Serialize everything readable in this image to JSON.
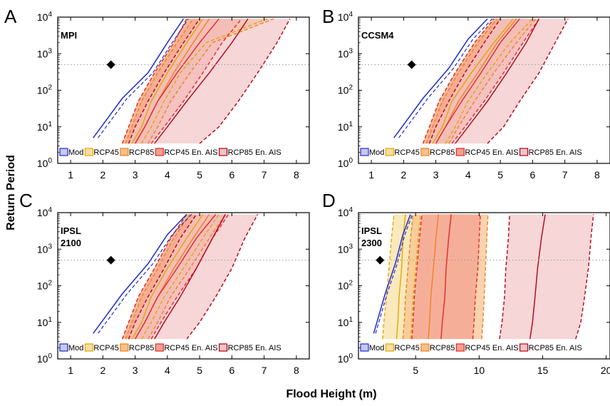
{
  "colors": {
    "mod": "#1f2bcc",
    "mod_fill": "#c6c9f3",
    "rcp45": "#e8a400",
    "rcp45_fill": "#f6dfa0",
    "rcp85": "#f08020",
    "rcp85_fill": "#f6c08a",
    "rcp45ais": "#e8262a",
    "rcp45ais_fill": "#f3a090",
    "rcp85ais": "#b30012",
    "rcp85ais_fill": "#f2c4c6",
    "marker": "#000000",
    "reference_line": "#999999"
  },
  "axis_labels": {
    "x": "Flood Height (m)",
    "y": "Return Period"
  },
  "y_ticks": [
    "0",
    "1",
    "2",
    "3",
    "4"
  ],
  "y_tick_base": "10",
  "legend": [
    "Mod",
    "RCP45",
    "RCP85",
    "RCP45 En. AIS",
    "RCP85 En. AIS"
  ],
  "chart_data": [
    {
      "type": "line",
      "panel": "A",
      "model": [
        "MPI"
      ],
      "y_scale": "log",
      "xlim": [
        0.6,
        8.4
      ],
      "ylim": [
        1,
        10000
      ],
      "x_ticks": [
        "1",
        "2",
        "3",
        "4",
        "5",
        "6",
        "7",
        "8"
      ],
      "reference_line_y": 500,
      "observed_marker": {
        "x": 2.25,
        "y": 500
      },
      "series": [
        {
          "name": "Mod",
          "style": "line",
          "x": [
            1.7,
            2.1,
            2.6,
            3.4,
            4.0,
            4.5
          ],
          "y": [
            5,
            15,
            60,
            300,
            2000,
            9000
          ]
        },
        {
          "name": "RCP45",
          "style": "band",
          "lower_x": [
            2.6,
            2.8,
            3.1,
            3.6,
            4.2,
            4.6
          ],
          "median_x": [
            2.9,
            3.2,
            3.5,
            4.0,
            4.6,
            5.1
          ],
          "upper_x": [
            3.2,
            3.5,
            3.9,
            4.4,
            5.2,
            7.1
          ],
          "y": [
            3.5,
            10,
            50,
            300,
            2000,
            9000
          ]
        },
        {
          "name": "RCP85",
          "style": "band",
          "lower_x": [
            2.7,
            2.9,
            3.2,
            3.7,
            4.3,
            4.8
          ],
          "median_x": [
            3.0,
            3.3,
            3.7,
            4.2,
            4.8,
            5.3
          ],
          "upper_x": [
            3.4,
            3.7,
            4.1,
            4.7,
            5.4,
            7.3
          ],
          "y": [
            3.5,
            10,
            50,
            300,
            2000,
            9000
          ]
        },
        {
          "name": "RCP45 En. AIS",
          "style": "band",
          "lower_x": [
            2.6,
            2.8,
            3.1,
            3.6,
            4.2,
            4.6
          ],
          "median_x": [
            3.0,
            3.3,
            3.7,
            4.3,
            5.0,
            5.6
          ],
          "upper_x": [
            3.5,
            3.9,
            4.5,
            5.1,
            5.7,
            6.3
          ],
          "y": [
            3.5,
            10,
            50,
            300,
            2000,
            9000
          ]
        },
        {
          "name": "RCP85 En. AIS",
          "style": "band",
          "lower_x": [
            2.8,
            3.0,
            3.4,
            3.9,
            4.5,
            5.0
          ],
          "median_x": [
            3.6,
            4.0,
            4.6,
            5.3,
            6.0,
            6.5
          ],
          "upper_x": [
            5.0,
            5.6,
            6.2,
            6.8,
            7.4,
            7.8
          ],
          "y": [
            3.5,
            10,
            50,
            300,
            2000,
            9000
          ]
        }
      ]
    },
    {
      "type": "line",
      "panel": "B",
      "model": [
        "CCSM4"
      ],
      "y_scale": "log",
      "xlim": [
        0.6,
        8.4
      ],
      "ylim": [
        1,
        10000
      ],
      "x_ticks": [
        "1",
        "2",
        "3",
        "4",
        "5",
        "6",
        "7",
        "8"
      ],
      "reference_line_y": 500,
      "observed_marker": {
        "x": 2.25,
        "y": 500
      },
      "series": [
        {
          "name": "Mod",
          "style": "line",
          "x": [
            1.7,
            2.1,
            2.6,
            3.4,
            4.0,
            4.6
          ],
          "y": [
            5,
            15,
            60,
            400,
            2500,
            9000
          ]
        },
        {
          "name": "RCP45",
          "style": "band",
          "lower_x": [
            2.6,
            2.8,
            3.1,
            3.6,
            4.2,
            4.8
          ],
          "median_x": [
            2.9,
            3.2,
            3.5,
            4.1,
            4.8,
            5.4
          ],
          "upper_x": [
            3.3,
            3.6,
            4.0,
            4.6,
            5.3,
            6.0
          ],
          "y": [
            3.5,
            10,
            50,
            300,
            2000,
            9000
          ]
        },
        {
          "name": "RCP85",
          "style": "band",
          "lower_x": [
            2.7,
            2.9,
            3.2,
            3.7,
            4.3,
            4.9
          ],
          "median_x": [
            3.0,
            3.3,
            3.7,
            4.3,
            4.9,
            5.5
          ],
          "upper_x": [
            3.4,
            3.7,
            4.2,
            4.8,
            5.5,
            6.1
          ],
          "y": [
            3.5,
            10,
            50,
            300,
            2000,
            9000
          ]
        },
        {
          "name": "RCP45 En. AIS",
          "style": "band",
          "lower_x": [
            2.6,
            2.8,
            3.1,
            3.6,
            4.2,
            4.8
          ],
          "median_x": [
            3.0,
            3.3,
            3.8,
            4.4,
            5.0,
            5.6
          ],
          "upper_x": [
            3.5,
            3.9,
            4.5,
            5.1,
            5.7,
            6.2
          ],
          "y": [
            3.5,
            10,
            50,
            300,
            2000,
            9000
          ]
        },
        {
          "name": "RCP85 En. AIS",
          "style": "band",
          "lower_x": [
            2.8,
            3.0,
            3.4,
            3.9,
            4.5,
            5.0
          ],
          "median_x": [
            3.6,
            4.0,
            4.6,
            5.2,
            5.8,
            6.2
          ],
          "upper_x": [
            4.6,
            5.1,
            5.6,
            6.2,
            6.7,
            7.1
          ],
          "y": [
            3.5,
            10,
            50,
            300,
            2000,
            9000
          ]
        }
      ]
    },
    {
      "type": "line",
      "panel": "C",
      "model": [
        "IPSL",
        "2100"
      ],
      "y_scale": "log",
      "xlim": [
        0.6,
        8.4
      ],
      "ylim": [
        1,
        10000
      ],
      "x_ticks": [
        "1",
        "2",
        "3",
        "4",
        "5",
        "6",
        "7",
        "8"
      ],
      "reference_line_y": 500,
      "observed_marker": {
        "x": 2.25,
        "y": 500
      },
      "series": [
        {
          "name": "Mod",
          "style": "line",
          "x": [
            1.7,
            2.1,
            2.6,
            3.4,
            4.0,
            4.6
          ],
          "y": [
            5,
            15,
            60,
            400,
            2500,
            9000
          ]
        },
        {
          "name": "RCP45",
          "style": "band",
          "lower_x": [
            2.6,
            2.8,
            3.1,
            3.6,
            4.1,
            4.6
          ],
          "median_x": [
            2.9,
            3.2,
            3.5,
            4.0,
            4.6,
            5.1
          ],
          "upper_x": [
            3.2,
            3.5,
            3.9,
            4.5,
            5.1,
            5.6
          ],
          "y": [
            3.5,
            10,
            50,
            300,
            2000,
            9000
          ]
        },
        {
          "name": "RCP85",
          "style": "band",
          "lower_x": [
            2.7,
            2.9,
            3.2,
            3.7,
            4.2,
            4.7
          ],
          "median_x": [
            3.0,
            3.3,
            3.7,
            4.2,
            4.8,
            5.3
          ],
          "upper_x": [
            3.4,
            3.7,
            4.1,
            4.7,
            5.3,
            5.8
          ],
          "y": [
            3.5,
            10,
            50,
            300,
            2000,
            9000
          ]
        },
        {
          "name": "RCP45 En. AIS",
          "style": "band",
          "lower_x": [
            2.6,
            2.8,
            3.1,
            3.6,
            4.1,
            4.6
          ],
          "median_x": [
            3.0,
            3.3,
            3.7,
            4.3,
            4.9,
            5.5
          ],
          "upper_x": [
            3.5,
            3.8,
            4.3,
            4.9,
            5.4,
            5.9
          ],
          "y": [
            3.5,
            10,
            50,
            300,
            2000,
            9000
          ]
        },
        {
          "name": "RCP85 En. AIS",
          "style": "band",
          "lower_x": [
            2.8,
            3.0,
            3.4,
            3.9,
            4.4,
            4.9
          ],
          "median_x": [
            3.6,
            3.9,
            4.4,
            4.9,
            5.4,
            5.8
          ],
          "upper_x": [
            4.6,
            5.0,
            5.5,
            6.0,
            6.4,
            6.8
          ],
          "y": [
            3.5,
            10,
            50,
            300,
            2000,
            9000
          ]
        }
      ]
    },
    {
      "type": "line",
      "panel": "D",
      "model": [
        "IPSL",
        "2300"
      ],
      "y_scale": "log",
      "xlim": [
        0.5,
        20.3
      ],
      "ylim": [
        1,
        10000
      ],
      "x_ticks": [
        "5",
        "10",
        "15",
        "20"
      ],
      "reference_line_y": 500,
      "observed_marker": {
        "x": 2.2,
        "y": 500
      },
      "series": [
        {
          "name": "Mod",
          "style": "line",
          "x": [
            1.7,
            2.1,
            2.6,
            3.4,
            4.0,
            4.6
          ],
          "y": [
            5,
            15,
            60,
            400,
            2500,
            9000
          ]
        },
        {
          "name": "RCP45",
          "style": "band",
          "lower_x": [
            2.4,
            2.5,
            2.7,
            2.9,
            3.1,
            3.3
          ],
          "median_x": [
            3.5,
            3.6,
            3.7,
            3.9,
            4.0,
            4.2
          ],
          "upper_x": [
            4.6,
            4.7,
            4.8,
            5.0,
            5.2,
            5.4
          ],
          "y": [
            3.5,
            10,
            50,
            300,
            2000,
            9000
          ]
        },
        {
          "name": "RCP85",
          "style": "band",
          "lower_x": [
            4.0,
            4.1,
            4.2,
            4.4,
            4.6,
            4.8
          ],
          "median_x": [
            6.0,
            6.1,
            6.2,
            6.4,
            6.6,
            6.8
          ],
          "upper_x": [
            10.2,
            10.3,
            10.4,
            10.5,
            10.6,
            10.7
          ],
          "y": [
            3.5,
            10,
            50,
            300,
            2000,
            9000
          ]
        },
        {
          "name": "RCP45 En. AIS",
          "style": "band",
          "lower_x": [
            4.7,
            4.8,
            4.9,
            5.1,
            5.3,
            5.5
          ],
          "median_x": [
            7.0,
            7.1,
            7.3,
            7.4,
            7.6,
            7.8
          ],
          "upper_x": [
            9.5,
            9.6,
            9.7,
            9.9,
            10.0,
            10.1
          ],
          "y": [
            3.5,
            10,
            50,
            300,
            2000,
            9000
          ]
        },
        {
          "name": "RCP85 En. AIS",
          "style": "band",
          "lower_x": [
            11.6,
            11.8,
            12.0,
            12.1,
            12.3,
            12.4
          ],
          "median_x": [
            14.0,
            14.2,
            14.4,
            14.6,
            14.9,
            15.2
          ],
          "upper_x": [
            17.6,
            18.0,
            18.3,
            18.6,
            18.8,
            19.0
          ],
          "y": [
            3.5,
            10,
            50,
            300,
            2000,
            9000
          ]
        }
      ]
    }
  ],
  "panels": [
    {
      "letter": "A",
      "model_lines": [
        "MPI",
        ""
      ]
    },
    {
      "letter": "B",
      "model_lines": [
        "CCSM4",
        ""
      ]
    },
    {
      "letter": "C",
      "model_lines": [
        "IPSL",
        "2100"
      ]
    },
    {
      "letter": "D",
      "model_lines": [
        "IPSL",
        "2300"
      ]
    }
  ]
}
